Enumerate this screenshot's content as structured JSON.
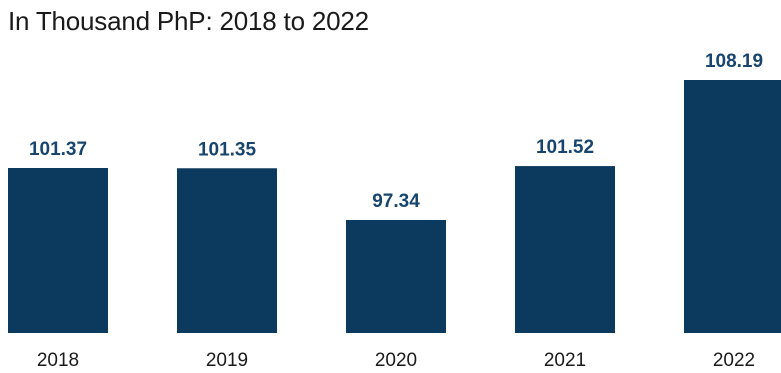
{
  "chart_data": {
    "type": "bar",
    "title": "In Thousand PhP: 2018 to 2022",
    "categories": [
      "2018",
      "2019",
      "2020",
      "2021",
      "2022"
    ],
    "values": [
      101.37,
      101.35,
      97.34,
      101.52,
      108.19
    ],
    "value_labels": [
      "101.37",
      "101.35",
      "97.34",
      "101.52",
      "108.19"
    ],
    "bar_color": "#0b3a5e",
    "label_color": "#17456e",
    "grid": false,
    "legend": "none"
  }
}
